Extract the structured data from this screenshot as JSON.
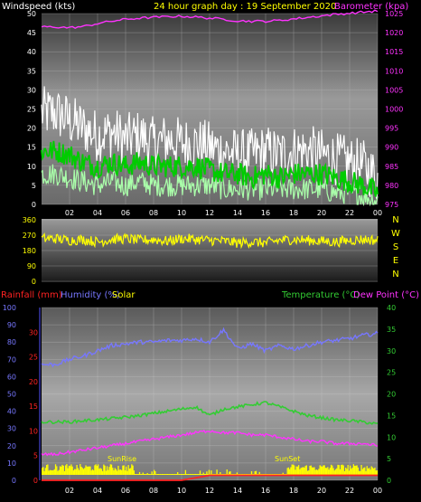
{
  "header": {
    "wind_label": "Windspeed (kts)",
    "title": "24 hour graph day : 19 September 2020",
    "baro_label": "Barometer (kpa)"
  },
  "colors": {
    "wind_gust": "#ffffff",
    "wind_avg": "#00cc00",
    "wind_speed": "#aaffaa",
    "barometer": "#ff33ff",
    "direction": "#ffff00",
    "rainfall": "#ff2222",
    "humidity": "#7777ff",
    "solar": "#ffff00",
    "temperature": "#33cc33",
    "dewpoint": "#ff33ff",
    "panel_bg": "#8a8a8a"
  },
  "x_ticks": [
    "02",
    "04",
    "06",
    "08",
    "10",
    "12",
    "14",
    "16",
    "18",
    "20",
    "22",
    "00"
  ],
  "panel1": {
    "wind_ticks": [
      "0",
      "5",
      "10",
      "15",
      "20",
      "25",
      "30",
      "35",
      "40",
      "45",
      "50"
    ],
    "baro_ticks": [
      "975",
      "980",
      "985",
      "990",
      "995",
      "1000",
      "1005",
      "1010",
      "1015",
      "1020",
      "1025"
    ]
  },
  "panel2": {
    "dir_ticks": [
      "0",
      "90",
      "180",
      "270",
      "360"
    ],
    "compass": [
      "N",
      "W",
      "S",
      "E",
      "N"
    ]
  },
  "panel3": {
    "rain_label": "Rainfall (mm)",
    "humidity_label": "Humidity (%)",
    "solar_label": "Solar",
    "temp_label": "Temperature (°C)",
    "dew_label": "Dew Point (°C)",
    "hum_ticks": [
      "0",
      "10",
      "20",
      "30",
      "40",
      "50",
      "60",
      "70",
      "80",
      "90",
      "100"
    ],
    "rain_ticks": [
      "0",
      "5",
      "10",
      "15",
      "20",
      "25",
      "30"
    ],
    "temp_ticks": [
      "0",
      "5",
      "10",
      "15",
      "20",
      "25",
      "30",
      "35",
      "40"
    ],
    "sunrise": "SunRise",
    "sunset": "SunSet"
  },
  "chart_data": [
    {
      "type": "line",
      "ylabel": "Windspeed (kts)",
      "ylabel_right": "Barometer (kpa)",
      "ylim": [
        0,
        50
      ],
      "ylim_right": [
        975,
        1025
      ],
      "x": [
        1,
        2,
        3,
        4,
        5,
        6,
        7,
        8,
        9,
        10,
        11,
        12,
        13,
        14,
        15,
        16,
        17,
        18,
        19,
        20,
        21,
        22,
        23,
        24
      ],
      "series": [
        {
          "values": [
            24,
            22,
            20,
            18,
            19,
            17,
            18,
            16,
            17,
            16,
            16,
            15,
            14,
            13,
            13,
            14,
            13,
            14,
            14,
            13,
            12,
            11,
            10,
            7
          ]
        },
        {
          "values": [
            14,
            13,
            11,
            10,
            11,
            10,
            11,
            10,
            10,
            10,
            10,
            9,
            8,
            8,
            7,
            8,
            7,
            8,
            8,
            8,
            7,
            6,
            5,
            3
          ]
        },
        {
          "values": [
            8,
            7,
            6,
            5,
            6,
            5,
            6,
            5,
            5,
            5,
            5,
            5,
            4,
            4,
            4,
            4,
            4,
            4,
            4,
            4,
            3,
            3,
            2,
            1
          ]
        },
        {
          "values": [
            1021.5,
            1021.3,
            1021.6,
            1022.4,
            1023.0,
            1023.5,
            1023.8,
            1024.0,
            1024.2,
            1024.3,
            1024.1,
            1023.8,
            1023.5,
            1023.1,
            1023.0,
            1023.0,
            1023.2,
            1023.6,
            1024.0,
            1024.4,
            1024.8,
            1025.1,
            1025.4,
            1025.7
          ]
        }
      ]
    },
    {
      "type": "line",
      "ylim": [
        0,
        360
      ],
      "x": [
        1,
        2,
        3,
        4,
        5,
        6,
        7,
        8,
        9,
        10,
        11,
        12,
        13,
        14,
        15,
        16,
        17,
        18,
        19,
        20,
        21,
        22,
        23,
        24
      ],
      "series": [
        {
          "values": [
            250,
            240,
            245,
            230,
            245,
            250,
            240,
            245,
            235,
            250,
            245,
            240,
            235,
            225,
            230,
            225,
            240,
            245,
            240,
            235,
            230,
            240,
            245,
            240
          ]
        }
      ]
    },
    {
      "type": "line",
      "ylabel": "Humidity (%)",
      "ylabel_right": "Temperature (°C)",
      "ylim": [
        0,
        100
      ],
      "ylim_right": [
        0,
        40
      ],
      "x": [
        1,
        2,
        3,
        4,
        5,
        6,
        7,
        8,
        9,
        10,
        11,
        12,
        13,
        14,
        15,
        16,
        17,
        18,
        19,
        20,
        21,
        22,
        23,
        24
      ],
      "series": [
        {
          "values": [
            67,
            70,
            72,
            75,
            78,
            79,
            80,
            80,
            81,
            81,
            82,
            80,
            87,
            76,
            79,
            75,
            78,
            76,
            78,
            80,
            81,
            82,
            84,
            85
          ]
        },
        {
          "values": [
            13.5,
            13.5,
            13.8,
            14.0,
            14.3,
            14.6,
            15.0,
            15.5,
            16.0,
            16.5,
            17.0,
            15.0,
            16.5,
            17.0,
            17.5,
            18.0,
            17.0,
            16.0,
            15.0,
            14.5,
            14.0,
            13.8,
            13.5,
            13.0
          ]
        },
        {
          "values": [
            6.0,
            6.5,
            7.0,
            7.5,
            8.0,
            8.5,
            9.0,
            9.5,
            10.0,
            10.5,
            11.0,
            11.5,
            11.0,
            11.0,
            10.5,
            10.5,
            10.0,
            9.5,
            9.0,
            9.0,
            8.5,
            8.5,
            8.5,
            8.0
          ]
        },
        {
          "values": [
            0,
            0,
            0,
            0,
            0,
            0,
            0,
            0,
            0,
            0,
            0.5,
            1,
            1,
            1,
            1,
            1,
            1,
            1,
            1,
            1,
            1,
            1,
            1,
            1
          ]
        }
      ]
    }
  ]
}
